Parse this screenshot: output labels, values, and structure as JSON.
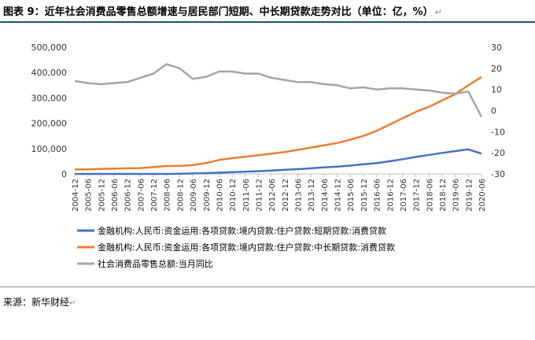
{
  "title": "图表 9：近年社会消费品零售总额增速与居民部门短期、中长期贷款走势对比（单位：亿，%）",
  "source": "来源：新华财经",
  "paragraph_mark": "↵",
  "chart_data": {
    "type": "line",
    "x_labels": [
      "2004-12",
      "2005-06",
      "2005-12",
      "2006-06",
      "2006-12",
      "2007-06",
      "2007-12",
      "2008-06",
      "2008-12",
      "2009-06",
      "2009-12",
      "2010-06",
      "2010-12",
      "2011-06",
      "2011-12",
      "2012-06",
      "2012-12",
      "2013-06",
      "2013-12",
      "2014-06",
      "2014-12",
      "2015-06",
      "2015-12",
      "2016-06",
      "2016-12",
      "2017-06",
      "2017-12",
      "2018-06",
      "2018-12",
      "2019-06",
      "2019-12",
      "2020-06"
    ],
    "y_left": {
      "min": 0,
      "max": 500000,
      "ticks": [
        0,
        100000,
        200000,
        300000,
        400000,
        500000
      ],
      "tick_labels": [
        "0",
        "100,000",
        "200,000",
        "300,000",
        "400,000",
        "500,000"
      ]
    },
    "y_right": {
      "min": -30,
      "max": 30,
      "ticks": [
        -30,
        -20,
        -10,
        0,
        10,
        20,
        30
      ],
      "tick_labels": [
        "-30",
        "-20",
        "-10",
        "0",
        "10",
        "20",
        "30"
      ]
    },
    "series": [
      {
        "name": "金融机构:人民币:资金运用:各项贷款:境内贷款:住户贷款:短期贷款:消费贷款",
        "color": "#4472c4",
        "axis": "left",
        "values": [
          0,
          0,
          0,
          0,
          0,
          0,
          0,
          0,
          1000,
          2000,
          3000,
          5000,
          7000,
          9000,
          11000,
          13000,
          16000,
          19000,
          22000,
          26000,
          29000,
          33000,
          38000,
          43000,
          50000,
          58000,
          67000,
          75000,
          83000,
          90000,
          97000,
          80000
        ]
      },
      {
        "name": "金融机构:人民币:资金运用:各项贷款:境内贷款:住户贷款:中长期贷款:消费贷款",
        "color": "#ed7d31",
        "axis": "left",
        "values": [
          18000,
          18000,
          20000,
          21000,
          22000,
          23000,
          27000,
          31000,
          32000,
          35000,
          43000,
          55000,
          62000,
          68000,
          74000,
          80000,
          86000,
          95000,
          104000,
          113000,
          122000,
          135000,
          150000,
          170000,
          195000,
          220000,
          245000,
          265000,
          290000,
          315000,
          350000,
          382000
        ]
      },
      {
        "name": "社会消费品零售总额:当月同比",
        "color": "#a5a5a5",
        "axis": "right",
        "values": [
          14,
          13,
          12.5,
          13,
          13.5,
          15.5,
          17.5,
          22,
          20,
          15,
          16,
          18.5,
          18.5,
          17.5,
          17.5,
          15.5,
          14.5,
          13.5,
          13.5,
          12.5,
          12,
          10.5,
          11,
          10,
          10.5,
          10.5,
          10,
          9.5,
          8.5,
          8,
          9,
          -3
        ]
      }
    ]
  }
}
